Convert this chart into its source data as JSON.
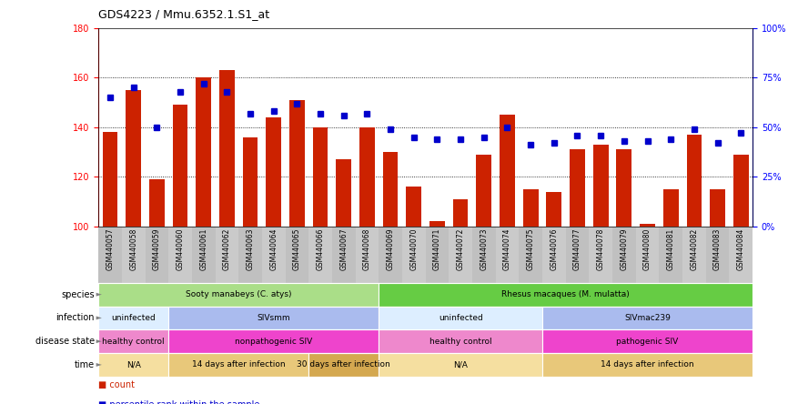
{
  "title": "GDS4223 / Mmu.6352.1.S1_at",
  "samples": [
    "GSM440057",
    "GSM440058",
    "GSM440059",
    "GSM440060",
    "GSM440061",
    "GSM440062",
    "GSM440063",
    "GSM440064",
    "GSM440065",
    "GSM440066",
    "GSM440067",
    "GSM440068",
    "GSM440069",
    "GSM440070",
    "GSM440071",
    "GSM440072",
    "GSM440073",
    "GSM440074",
    "GSM440075",
    "GSM440076",
    "GSM440077",
    "GSM440078",
    "GSM440079",
    "GSM440080",
    "GSM440081",
    "GSM440082",
    "GSM440083",
    "GSM440084"
  ],
  "counts": [
    138,
    155,
    119,
    149,
    160,
    163,
    136,
    144,
    151,
    140,
    127,
    140,
    130,
    116,
    102,
    111,
    129,
    145,
    115,
    114,
    131,
    133,
    131,
    101,
    115,
    137,
    115,
    129
  ],
  "percentile": [
    65,
    70,
    50,
    68,
    72,
    68,
    57,
    58,
    62,
    57,
    56,
    57,
    49,
    45,
    44,
    44,
    45,
    50,
    41,
    42,
    46,
    46,
    43,
    43,
    44,
    49,
    42,
    47
  ],
  "ylim_left": [
    100,
    180
  ],
  "ylim_right": [
    0,
    100
  ],
  "yticks_left": [
    100,
    120,
    140,
    160,
    180
  ],
  "yticks_right": [
    0,
    25,
    50,
    75,
    100
  ],
  "bar_color": "#cc2200",
  "dot_color": "#0000cc",
  "species_groups": [
    {
      "label": "Sooty manabeys (C. atys)",
      "start": 0,
      "end": 12,
      "color": "#aade88"
    },
    {
      "label": "Rhesus macaques (M. mulatta)",
      "start": 12,
      "end": 28,
      "color": "#66cc44"
    }
  ],
  "infection_groups": [
    {
      "label": "uninfected",
      "start": 0,
      "end": 3,
      "color": "#ddeeff"
    },
    {
      "label": "SIVsmm",
      "start": 3,
      "end": 12,
      "color": "#aabbee"
    },
    {
      "label": "uninfected",
      "start": 12,
      "end": 19,
      "color": "#ddeeff"
    },
    {
      "label": "SIVmac239",
      "start": 19,
      "end": 28,
      "color": "#aabbee"
    }
  ],
  "disease_groups": [
    {
      "label": "healthy control",
      "start": 0,
      "end": 3,
      "color": "#ee88cc"
    },
    {
      "label": "nonpathogenic SIV",
      "start": 3,
      "end": 12,
      "color": "#ee44cc"
    },
    {
      "label": "healthy control",
      "start": 12,
      "end": 19,
      "color": "#ee88cc"
    },
    {
      "label": "pathogenic SIV",
      "start": 19,
      "end": 28,
      "color": "#ee44cc"
    }
  ],
  "time_groups": [
    {
      "label": "N/A",
      "start": 0,
      "end": 3,
      "color": "#f5dfa0"
    },
    {
      "label": "14 days after infection",
      "start": 3,
      "end": 9,
      "color": "#e8c87a"
    },
    {
      "label": "30 days after infection",
      "start": 9,
      "end": 12,
      "color": "#d4a850"
    },
    {
      "label": "N/A",
      "start": 12,
      "end": 19,
      "color": "#f5dfa0"
    },
    {
      "label": "14 days after infection",
      "start": 19,
      "end": 28,
      "color": "#e8c87a"
    }
  ],
  "row_labels": [
    "species",
    "infection",
    "disease state",
    "time"
  ]
}
